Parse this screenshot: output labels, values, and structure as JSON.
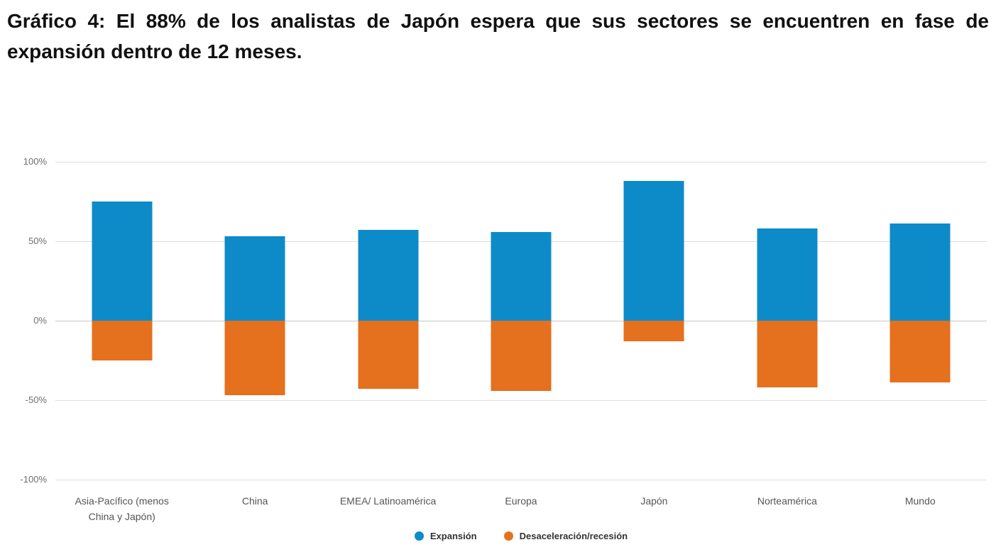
{
  "title": "Gráfico 4: El 88% de los analistas de Japón espera que sus sectores se encuentren en fase de expansión dentro de 12 meses.",
  "colors": {
    "expansion": "#0d8bc9",
    "recession": "#e5701d",
    "grid": "#dedede",
    "axis_text": "#6e6e6e",
    "category_text": "#555555"
  },
  "chart_data": {
    "type": "bar",
    "title": "Gráfico 4: El 88% de los analistas de Japón espera que sus sectores se encuentren en fase de expansión dentro de 12 meses.",
    "categories": [
      "Asia-Pacífico (menos China y Japón)",
      "China",
      "EMEA/ Latinoamérica",
      "Europa",
      "Japón",
      "Norteamérica",
      "Mundo"
    ],
    "series": [
      {
        "name": "Expansión",
        "color": "#0d8bc9",
        "values": [
          75,
          53,
          57,
          56,
          88,
          58,
          61
        ]
      },
      {
        "name": "Desaceleración/recesión",
        "color": "#e5701d",
        "values": [
          -25,
          -47,
          -43,
          -44,
          -13,
          -42,
          -39
        ]
      }
    ],
    "xlabel": "",
    "ylabel": "",
    "ylim": [
      -100,
      100
    ],
    "yticks": [
      100,
      50,
      0,
      -50,
      -100
    ],
    "ytick_labels": [
      "100%",
      "50%",
      "0%",
      "-50%",
      "-100%"
    ],
    "grid": true,
    "legend_position": "bottom"
  },
  "legend": [
    {
      "label": "Expansión",
      "color": "#0d8bc9"
    },
    {
      "label": "Desaceleración/recesión",
      "color": "#e5701d"
    }
  ]
}
